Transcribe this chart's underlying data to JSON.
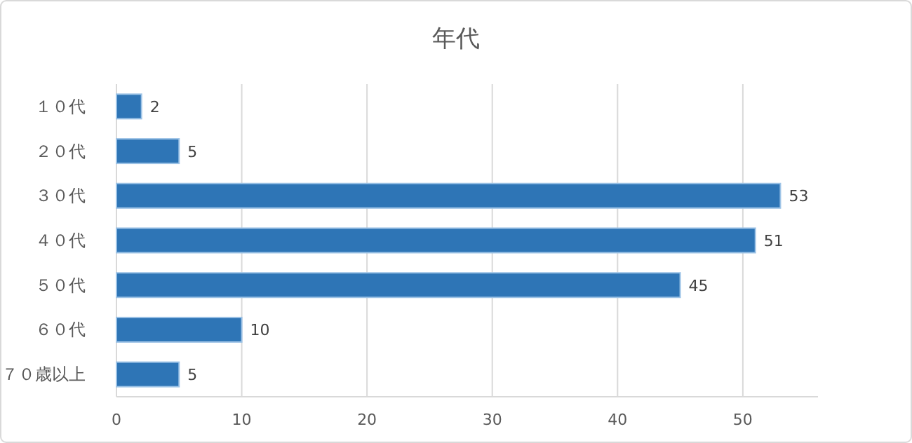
{
  "chart_data": {
    "type": "bar",
    "orientation": "horizontal",
    "title": "年代",
    "categories": [
      "１０代",
      "２０代",
      "３０代",
      "４０代",
      "５０代",
      "６０代",
      "７０歳以上"
    ],
    "values": [
      2,
      5,
      53,
      51,
      45,
      10,
      5
    ],
    "color": "#2e75b6",
    "xlim": [
      0,
      56
    ],
    "xticks": [
      0,
      10,
      20,
      30,
      40,
      50
    ],
    "grid": "x",
    "data_labels": true
  }
}
